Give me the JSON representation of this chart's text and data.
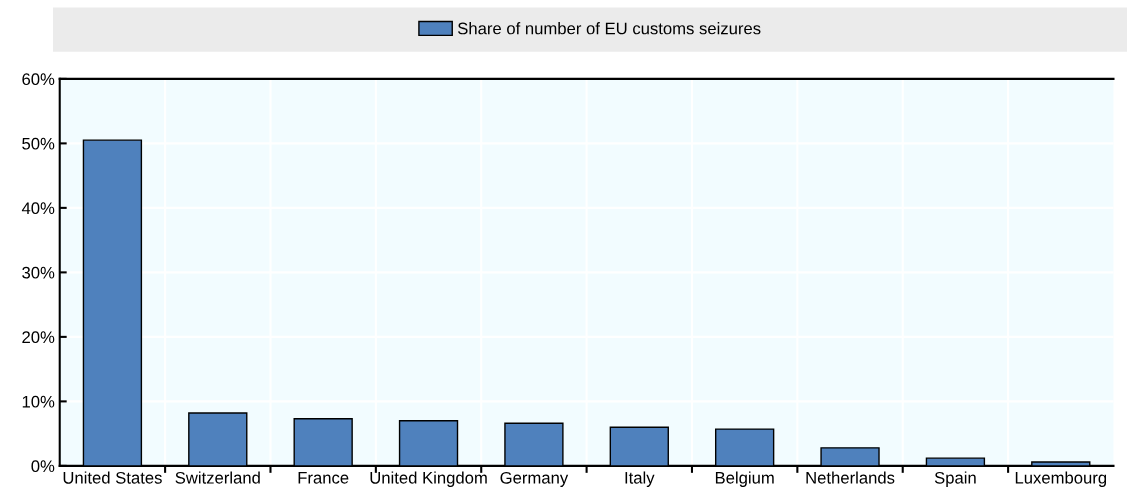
{
  "chart_data": {
    "type": "bar",
    "categories": [
      "United States",
      "Switzerland",
      "France",
      "United Kingdom",
      "Germany",
      "Italy",
      "Belgium",
      "Netherlands",
      "Spain",
      "Luxembourg"
    ],
    "series": [
      {
        "name": "Share of number of EU customs seizures",
        "color": "#4f81bd",
        "values": [
          50.5,
          8.2,
          7.3,
          7.0,
          6.6,
          6.0,
          5.7,
          2.8,
          1.2,
          0.6
        ]
      }
    ],
    "ylim": [
      0,
      60
    ],
    "yticks": [
      {
        "value": 0,
        "label": "0%"
      },
      {
        "value": 10,
        "label": "10%"
      },
      {
        "value": 20,
        "label": "20%"
      },
      {
        "value": 30,
        "label": "30%"
      },
      {
        "value": 40,
        "label": "40%"
      },
      {
        "value": 50,
        "label": "50%"
      },
      {
        "value": 60,
        "label": "60%"
      }
    ],
    "grid": true,
    "legend": "top"
  }
}
